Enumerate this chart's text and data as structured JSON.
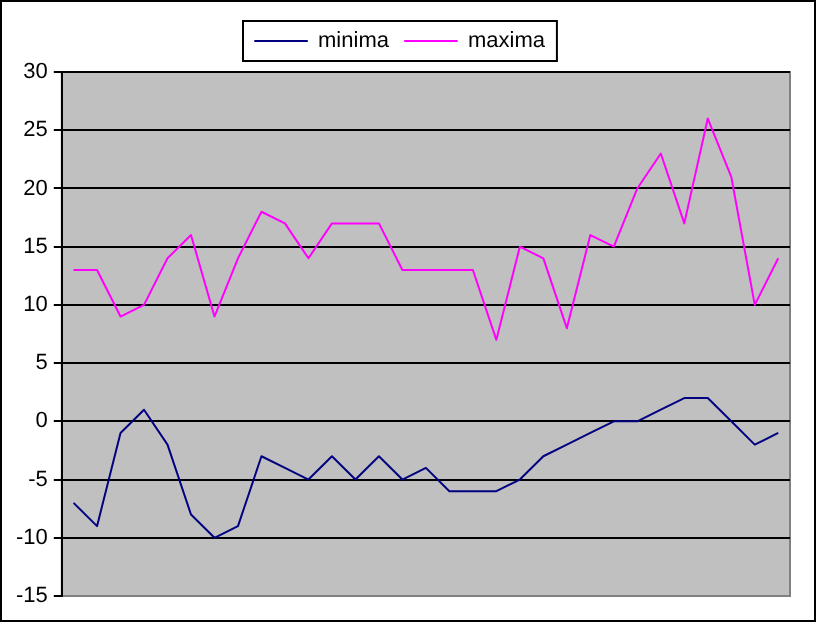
{
  "chart_data": {
    "type": "line",
    "categories": [
      null,
      null,
      null,
      null,
      null,
      null,
      null,
      null,
      null,
      null,
      null,
      null,
      null,
      null,
      null,
      null,
      null,
      null,
      null,
      null,
      null,
      null,
      null,
      null,
      null,
      null,
      null,
      null,
      null,
      null,
      null
    ],
    "series": [
      {
        "name": "minima",
        "color": "#000080",
        "values": [
          -7,
          -9,
          -1,
          1,
          -2,
          -8,
          -10,
          -9,
          -3,
          -4,
          -5,
          -3,
          -5,
          -3,
          -5,
          -4,
          -6,
          -6,
          -6,
          -5,
          -3,
          -2,
          -1,
          0,
          0,
          1,
          2,
          2,
          0,
          -2,
          -1
        ]
      },
      {
        "name": "maxima",
        "color": "#ff00ff",
        "values": [
          13,
          13,
          9,
          10,
          14,
          16,
          9,
          14,
          18,
          17,
          14,
          17,
          17,
          17,
          13,
          13,
          13,
          13,
          7,
          15,
          14,
          8,
          16,
          15,
          20,
          23,
          17,
          26,
          21,
          10,
          14
        ]
      }
    ],
    "ylim": [
      -15,
      30
    ],
    "yticks": [
      -15,
      -10,
      -5,
      0,
      5,
      10,
      15,
      20,
      25,
      30
    ],
    "grid": "y",
    "legend": "top",
    "marker": "none",
    "line_style": "solid",
    "tick_labels": "y"
  }
}
